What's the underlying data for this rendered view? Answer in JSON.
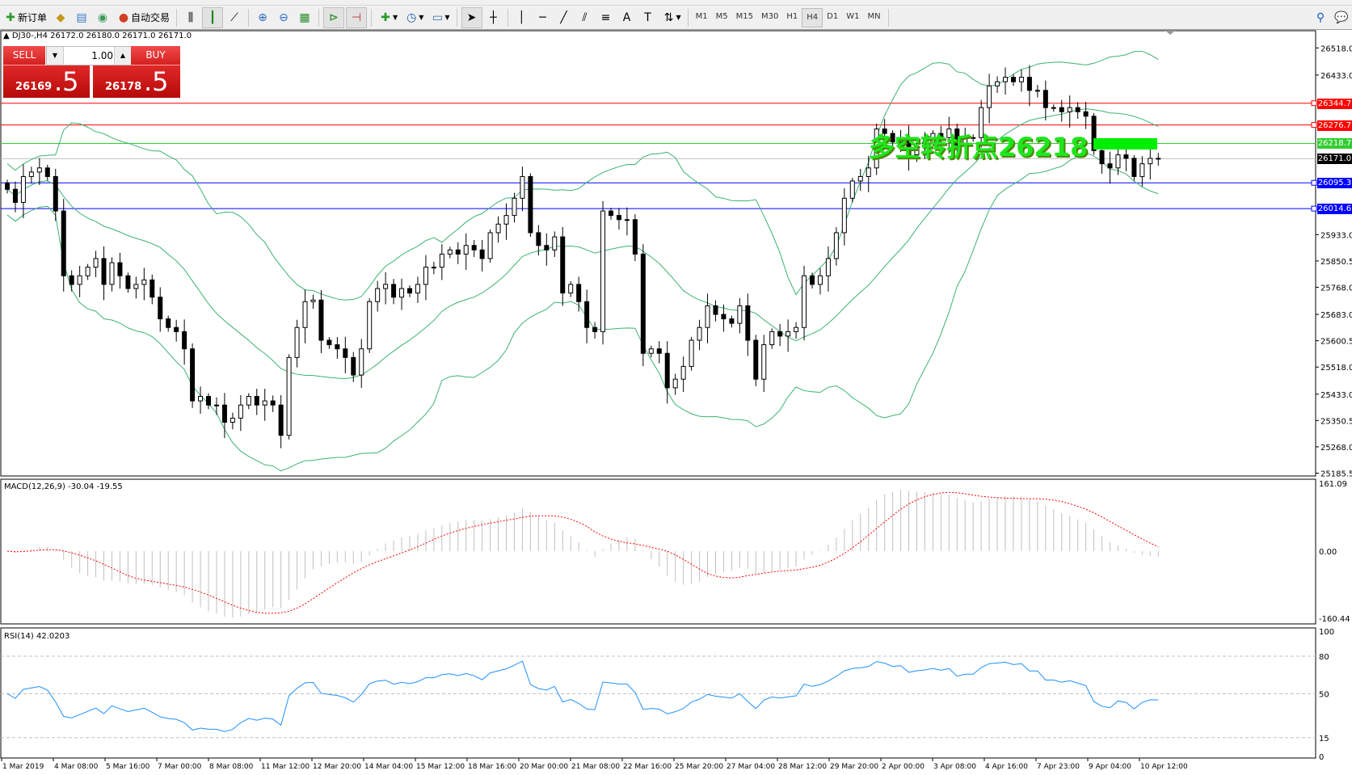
{
  "toolbar": {
    "new_order_label": "新订单",
    "auto_trading_label": "自动交易",
    "timeframes": [
      "M1",
      "M5",
      "M15",
      "M30",
      "H1",
      "H4",
      "D1",
      "W1",
      "MN"
    ],
    "active_timeframe": "H4"
  },
  "chart": {
    "header": "DJ30-,H4  26172.0 26180.0 26171.0 26171.0",
    "annotation": "多空转折点26218",
    "annotation_color": "#1ee61e"
  },
  "trade_panel": {
    "sell_label": "SELL",
    "buy_label": "BUY",
    "lot": "1.00",
    "sell_price_main": "26169",
    "sell_price_frac": ".5",
    "buy_price_main": "26178",
    "buy_price_frac": ".5"
  },
  "price_axis": [
    "26518.0",
    "26433.0",
    "25933.0",
    "25850.5",
    "25768.0",
    "25683.0",
    "25600.5",
    "25518.0",
    "25433.0",
    "25350.5",
    "25268.0",
    "25185.5"
  ],
  "levels": [
    {
      "value": "26344.7",
      "color": "#ff0000"
    },
    {
      "value": "26276.7",
      "color": "#ff0000"
    },
    {
      "value": "26218.7",
      "color": "#32cd32"
    },
    {
      "value": "26171.0",
      "color": "#000000",
      "line": "#c0c0c0"
    },
    {
      "value": "26095.3",
      "color": "#0000ff"
    },
    {
      "value": "26014.6",
      "color": "#0000ff"
    }
  ],
  "time_axis": [
    "1 Mar 2019",
    "4 Mar 08:00",
    "5 Mar 16:00",
    "7 Mar 00:00",
    "8 Mar 08:00",
    "11 Mar 12:00",
    "12 Mar 20:00",
    "14 Mar 04:00",
    "15 Mar 12:00",
    "18 Mar 16:00",
    "20 Mar 00:00",
    "21 Mar 08:00",
    "22 Mar 16:00",
    "25 Mar 20:00",
    "27 Mar 04:00",
    "28 Mar 12:00",
    "29 Mar 20:00",
    "2 Apr 00:00",
    "3 Apr 08:00",
    "4 Apr 16:00",
    "7 Apr 23:00",
    "9 Apr 04:00",
    "10 Apr 12:00"
  ],
  "macd": {
    "label": "MACD(12,26,9) -30.04 -19.55",
    "axis": [
      "161.09",
      "0.00",
      "-160.44"
    ],
    "signal_color": "#ff0000",
    "hist_color": "#c0c0c0"
  },
  "rsi": {
    "label": "RSI(14) 42.0203",
    "axis": [
      "100",
      "80",
      "50",
      "15",
      "0"
    ],
    "levels": [
      80,
      50,
      15
    ],
    "color": "#1e90ff"
  },
  "chart_data": {
    "type": "candlestick",
    "symbol": "DJ30-",
    "timeframe": "H4",
    "ylim": [
      25185.5,
      26560
    ],
    "indicators": [
      "Bollinger Bands",
      "MACD(12,26,9)",
      "RSI(14)"
    ],
    "band_color": "#3cb371",
    "close": [
      26075,
      26034,
      26115,
      26129,
      26142,
      26115,
      26007,
      25804,
      25777,
      25804,
      25831,
      25858,
      25777,
      25845,
      25804,
      25764,
      25777,
      25791,
      25737,
      25669,
      25642,
      25629,
      25575,
      25412,
      25426,
      25399,
      25399,
      25345,
      25358,
      25399,
      25426,
      25399,
      25412,
      25399,
      25304,
      25548,
      25642,
      25723,
      25728,
      25602,
      25588,
      25575,
      25548,
      25493,
      25575,
      25723,
      25764,
      25777,
      25737,
      25764,
      25750,
      25777,
      25831,
      25831,
      25872,
      25885,
      25872,
      25899,
      25885,
      25858,
      25939,
      25966,
      25993,
      26047,
      26115,
      25939,
      25899,
      25885,
      25926,
      25750,
      25777,
      25723,
      25642,
      25629,
      26007,
      25993,
      25980,
      25980,
      25872,
      25561,
      25575,
      25561,
      25453,
      25480,
      25520,
      25602,
      25642,
      25710,
      25683,
      25669,
      25655,
      25710,
      25602,
      25480,
      25588,
      25629,
      25615,
      25629,
      25642,
      25804,
      25777,
      25804,
      25858,
      25939,
      26047,
      26101,
      26115,
      26142,
      26264,
      26250,
      26223,
      26237,
      26183,
      26210,
      26223,
      26250,
      26237,
      26264,
      26210,
      26237,
      26237,
      26331,
      26399,
      26412,
      26426,
      26412,
      26426,
      26385,
      26385,
      26331,
      26331,
      26318,
      26331,
      26318,
      26304,
      26196,
      26155,
      26142,
      26183,
      26172,
      26115,
      26155,
      26172,
      26171
    ]
  }
}
